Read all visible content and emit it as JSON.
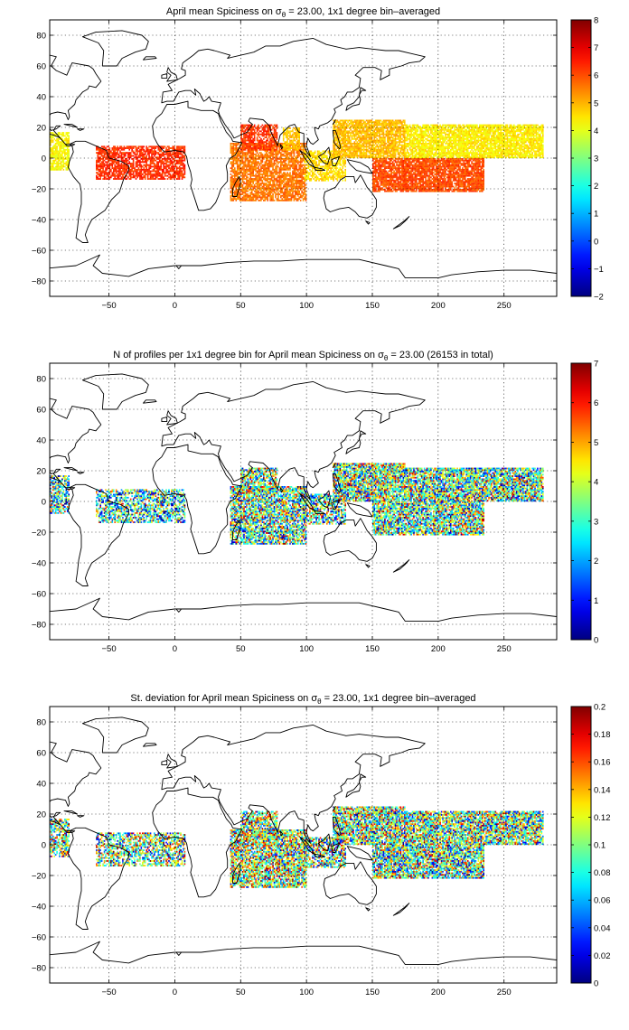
{
  "chart_data": [
    {
      "type": "heatmap",
      "title_prefix": "April mean Spiciness on σ",
      "title_sub": "θ",
      "title_suffix": " = 23.00, 1x1 degree bin–averaged",
      "xlim": [
        -95,
        290
      ],
      "ylim": [
        -90,
        90
      ],
      "xticks": [
        -50,
        0,
        50,
        100,
        150,
        200,
        250
      ],
      "yticks": [
        80,
        60,
        40,
        20,
        0,
        -20,
        -40,
        -60,
        -80
      ],
      "colorbar": {
        "min": -2,
        "max": 8,
        "ticks": [
          8,
          7,
          6,
          5,
          4,
          3,
          2,
          1,
          0,
          -1,
          -2
        ]
      },
      "grid": true,
      "regions": [
        {
          "lon": [
            -95,
            -80
          ],
          "lat": [
            -8,
            17
          ],
          "value": 4.3,
          "density": 0.8
        },
        {
          "lon": [
            -60,
            8
          ],
          "lat": [
            -14,
            8
          ],
          "value": 6.3,
          "density": 0.75
        },
        {
          "lon": [
            42,
            100
          ],
          "lat": [
            -28,
            10
          ],
          "value": 5.6,
          "density": 0.8
        },
        {
          "lon": [
            50,
            78
          ],
          "lat": [
            5,
            22
          ],
          "value": 6.2,
          "density": 0.75
        },
        {
          "lon": [
            82,
            95
          ],
          "lat": [
            5,
            20
          ],
          "value": 4.8,
          "density": 0.7
        },
        {
          "lon": [
            98,
            130
          ],
          "lat": [
            -15,
            5
          ],
          "value": 4.6,
          "density": 0.7
        },
        {
          "lon": [
            120,
            175
          ],
          "lat": [
            0,
            25
          ],
          "value": 4.9,
          "density": 0.85
        },
        {
          "lon": [
            150,
            235
          ],
          "lat": [
            -22,
            0
          ],
          "value": 6.0,
          "density": 0.85
        },
        {
          "lon": [
            175,
            280
          ],
          "lat": [
            0,
            22
          ],
          "value": 4.4,
          "density": 0.85
        }
      ]
    },
    {
      "type": "heatmap",
      "title_prefix": "N of profiles per 1x1 degree bin for April mean Spiciness on σ",
      "title_sub": "θ",
      "title_suffix": " = 23.00 (26153 in total)",
      "xlim": [
        -95,
        290
      ],
      "ylim": [
        -90,
        90
      ],
      "xticks": [
        -50,
        0,
        50,
        100,
        150,
        200,
        250
      ],
      "yticks": [
        80,
        60,
        40,
        20,
        0,
        -20,
        -40,
        -60,
        -80
      ],
      "colorbar": {
        "min": 0,
        "max": 7,
        "ticks": [
          7,
          6,
          5,
          4,
          3,
          2,
          1,
          0
        ]
      },
      "grid": true,
      "regions": [
        {
          "lon": [
            -95,
            -80
          ],
          "lat": [
            -8,
            17
          ],
          "value": 2.3,
          "density": 0.7
        },
        {
          "lon": [
            -60,
            8
          ],
          "lat": [
            -14,
            8
          ],
          "value": 2.2,
          "density": 0.65
        },
        {
          "lon": [
            42,
            100
          ],
          "lat": [
            -28,
            10
          ],
          "value": 3.2,
          "density": 0.8
        },
        {
          "lon": [
            50,
            78
          ],
          "lat": [
            5,
            22
          ],
          "value": 4.0,
          "density": 0.75
        },
        {
          "lon": [
            98,
            130
          ],
          "lat": [
            -15,
            5
          ],
          "value": 3.0,
          "density": 0.7
        },
        {
          "lon": [
            120,
            175
          ],
          "lat": [
            0,
            25
          ],
          "value": 3.8,
          "density": 0.85
        },
        {
          "lon": [
            150,
            235
          ],
          "lat": [
            -22,
            0
          ],
          "value": 3.4,
          "density": 0.85
        },
        {
          "lon": [
            175,
            280
          ],
          "lat": [
            0,
            22
          ],
          "value": 3.6,
          "density": 0.85
        }
      ]
    },
    {
      "type": "heatmap",
      "title_prefix": "St. deviation for April mean Spiciness on σ",
      "title_sub": "θ",
      "title_suffix": " = 23.00, 1x1 degree bin–averaged",
      "xlim": [
        -95,
        290
      ],
      "ylim": [
        -90,
        90
      ],
      "xticks": [
        -50,
        0,
        50,
        100,
        150,
        200,
        250
      ],
      "yticks": [
        80,
        60,
        40,
        20,
        0,
        -20,
        -40,
        -60,
        -80
      ],
      "colorbar": {
        "min": 0,
        "max": 0.2,
        "ticks": [
          0.2,
          0.18,
          0.16,
          0.14,
          0.12,
          0.1,
          0.08,
          0.06,
          0.04,
          0.02,
          0
        ]
      },
      "grid": true,
      "regions": [
        {
          "lon": [
            -95,
            -80
          ],
          "lat": [
            -8,
            17
          ],
          "value": 0.12,
          "density": 0.7
        },
        {
          "lon": [
            -60,
            8
          ],
          "lat": [
            -14,
            8
          ],
          "value": 0.11,
          "density": 0.65
        },
        {
          "lon": [
            42,
            100
          ],
          "lat": [
            -28,
            10
          ],
          "value": 0.13,
          "density": 0.8
        },
        {
          "lon": [
            50,
            78
          ],
          "lat": [
            5,
            22
          ],
          "value": 0.14,
          "density": 0.75
        },
        {
          "lon": [
            98,
            130
          ],
          "lat": [
            -15,
            5
          ],
          "value": 0.1,
          "density": 0.7
        },
        {
          "lon": [
            120,
            175
          ],
          "lat": [
            0,
            25
          ],
          "value": 0.11,
          "density": 0.85
        },
        {
          "lon": [
            150,
            235
          ],
          "lat": [
            -22,
            0
          ],
          "value": 0.1,
          "density": 0.85
        },
        {
          "lon": [
            175,
            280
          ],
          "lat": [
            0,
            22
          ],
          "value": 0.11,
          "density": 0.85
        }
      ]
    }
  ]
}
